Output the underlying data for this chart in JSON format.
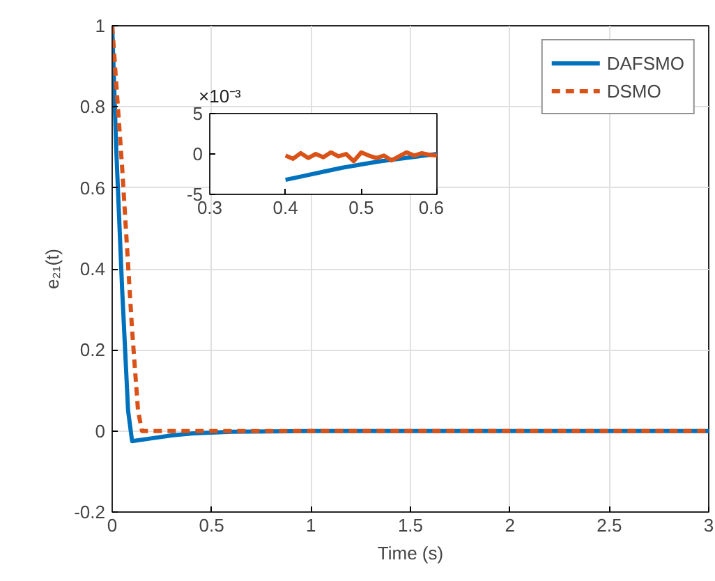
{
  "chart_data": [
    {
      "type": "line",
      "xlabel": "Time (s)",
      "ylabel": "e₂₁(t)",
      "xlim": [
        0,
        3
      ],
      "ylim": [
        -0.2,
        1
      ],
      "xticks": [
        0,
        0.5,
        1,
        1.5,
        2,
        2.5,
        3
      ],
      "yticks": [
        -0.2,
        0,
        0.2,
        0.4,
        0.6,
        0.8,
        1
      ],
      "grid": true,
      "legend": "top right",
      "series": [
        {
          "name": "DAFSMO",
          "color": "#0072bd",
          "line_style": "solid",
          "x": [
            0,
            0.02,
            0.05,
            0.08,
            0.1,
            0.2,
            0.3,
            0.4,
            0.6,
            0.8,
            1,
            1.5,
            2,
            2.5,
            3
          ],
          "values": [
            1,
            0.7,
            0.35,
            0.05,
            -0.025,
            -0.018,
            -0.011,
            -0.006,
            -0.002,
            -0.001,
            0,
            0,
            0,
            0,
            0
          ]
        },
        {
          "name": "DSMO",
          "color": "#d95319",
          "line_style": "dashed",
          "x": [
            0,
            0.05,
            0.1,
            0.13,
            0.15,
            0.2,
            0.5,
            1,
            1.5,
            2,
            2.5,
            3
          ],
          "values": [
            1,
            0.65,
            0.25,
            0.05,
            0,
            0,
            0,
            0,
            0,
            0,
            0,
            0
          ]
        }
      ]
    },
    {
      "type": "line",
      "xlim": [
        0.3,
        0.6
      ],
      "ylim": [
        -5,
        5
      ],
      "xticks": [
        0.3,
        0.4,
        0.5,
        0.6
      ],
      "yticks": [
        -5,
        0,
        5
      ],
      "grid": false,
      "annotations": [
        "×10⁻³"
      ],
      "series": [
        {
          "color": "#0072bd",
          "line_style": "solid",
          "x": [
            0.4,
            0.425,
            0.45,
            0.475,
            0.5,
            0.525,
            0.55,
            0.575,
            0.6
          ],
          "values": [
            -3.2,
            -2.7,
            -2.2,
            -1.7,
            -1.3,
            -0.9,
            -0.6,
            -0.3,
            0
          ]
        },
        {
          "color": "#d95319",
          "line_style": "solid",
          "x": [
            0.4,
            0.41,
            0.42,
            0.43,
            0.44,
            0.45,
            0.46,
            0.47,
            0.48,
            0.49,
            0.5,
            0.51,
            0.52,
            0.53,
            0.54,
            0.55,
            0.56,
            0.57,
            0.58,
            0.59,
            0.6
          ],
          "values": [
            -0.2,
            -0.6,
            0.1,
            -0.5,
            0,
            -0.4,
            0.2,
            -0.3,
            0,
            -0.9,
            0.2,
            -0.2,
            -0.5,
            -0.2,
            -0.8,
            -0.3,
            0.2,
            -0.2,
            0.1,
            -0.1,
            -0.2
          ]
        }
      ]
    }
  ]
}
